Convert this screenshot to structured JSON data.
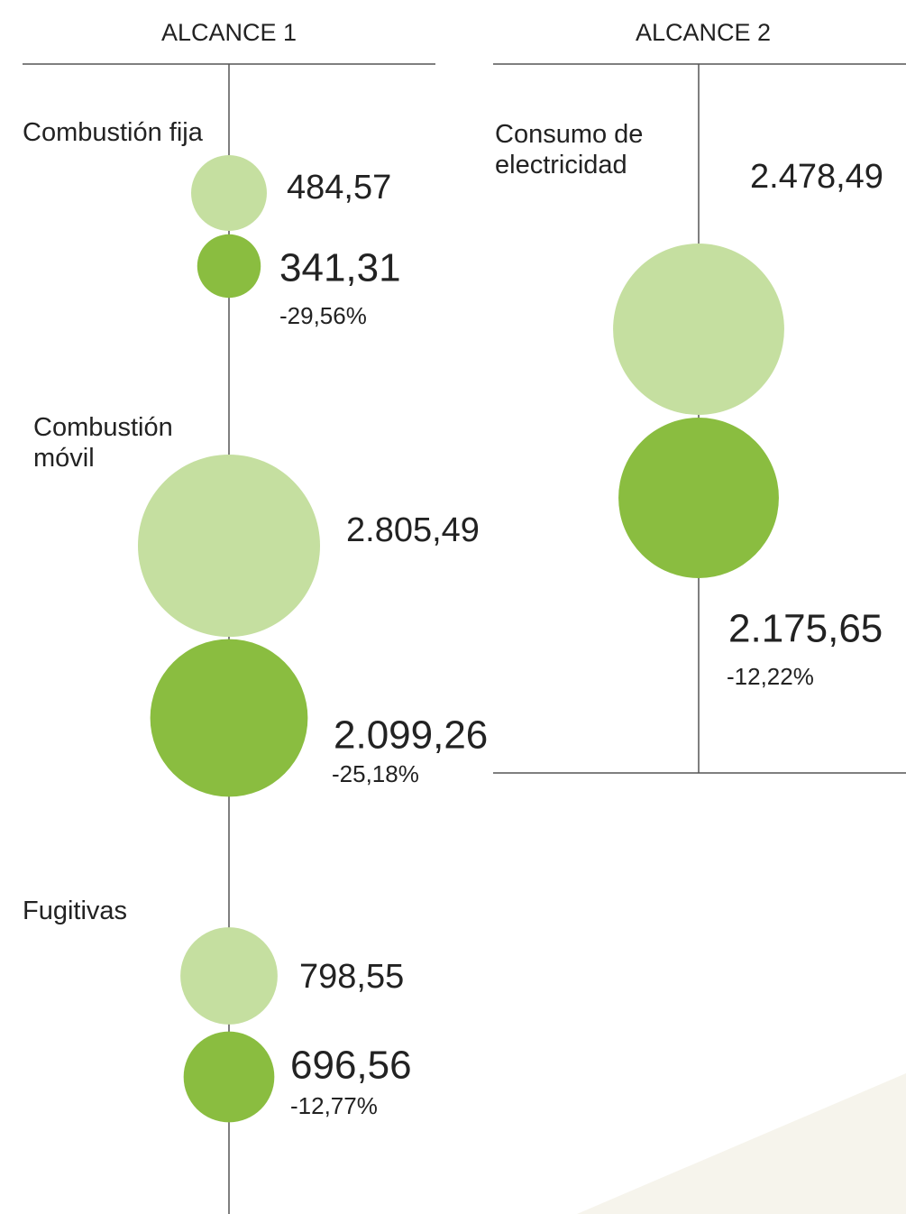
{
  "chart_data": [
    {
      "type": "bubble",
      "title": "ALCANCE 1",
      "colors": [
        "#c5dfa0",
        "#8abd40"
      ],
      "groups": [
        {
          "label": "Combustión fija",
          "values": [
            484.57,
            341.31
          ],
          "value_labels": [
            "484,57",
            "341,31"
          ],
          "change": -29.56,
          "change_label": "-29,56%"
        },
        {
          "label": "Combustión móvil",
          "values": [
            2805.49,
            2099.26
          ],
          "value_labels": [
            "2.805,49",
            "2.099,26"
          ],
          "change": -25.18,
          "change_label": "-25,18%"
        },
        {
          "label": "Fugitivas",
          "values": [
            798.55,
            696.56
          ],
          "value_labels": [
            "798,55",
            "696,56"
          ],
          "change": -12.77,
          "change_label": "-12,77%"
        }
      ]
    },
    {
      "type": "bubble",
      "title": "ALCANCE 2",
      "colors": [
        "#c5dfa0",
        "#8abd40"
      ],
      "groups": [
        {
          "label": "Consumo de electricidad",
          "values": [
            2478.49,
            2175.65
          ],
          "value_labels": [
            "2.478,49",
            "2.175,65"
          ],
          "change": -12.22,
          "change_label": "-12,22%"
        }
      ]
    }
  ]
}
